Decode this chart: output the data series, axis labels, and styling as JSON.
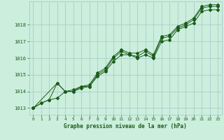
{
  "xlabel": "Graphe pression niveau de la mer (hPa)",
  "background_color": "#cceedd",
  "grid_color": "#aacccc",
  "line_color": "#1a5c1a",
  "text_color": "#1a5c1a",
  "xlim": [
    -0.5,
    23.5
  ],
  "ylim": [
    1012.6,
    1019.4
  ],
  "yticks": [
    1013,
    1014,
    1015,
    1016,
    1017,
    1018
  ],
  "xticks": [
    0,
    1,
    2,
    3,
    4,
    5,
    6,
    7,
    8,
    9,
    10,
    11,
    12,
    13,
    14,
    15,
    16,
    17,
    18,
    19,
    20,
    21,
    22,
    23
  ],
  "series1_x": [
    0,
    1,
    2,
    3,
    4,
    5,
    6,
    7,
    8,
    9,
    10,
    11,
    12,
    13,
    14,
    15,
    16,
    17,
    18,
    19,
    20,
    21,
    22,
    23
  ],
  "series1_y": [
    1013.0,
    1013.3,
    1013.5,
    1014.5,
    1014.0,
    1014.0,
    1014.3,
    1014.3,
    1015.0,
    1015.3,
    1016.0,
    1016.4,
    1016.2,
    1016.1,
    1016.4,
    1016.1,
    1017.2,
    1017.3,
    1017.8,
    1018.0,
    1018.3,
    1019.0,
    1019.1,
    1019.1
  ],
  "series2_x": [
    0,
    1,
    2,
    3,
    4,
    5,
    6,
    7,
    8,
    9,
    10,
    11,
    12,
    13,
    14,
    15,
    16,
    17,
    18,
    19,
    20,
    21,
    22,
    23
  ],
  "series2_y": [
    1013.0,
    1013.3,
    1013.5,
    1013.6,
    1014.0,
    1014.0,
    1014.2,
    1014.3,
    1014.9,
    1015.2,
    1015.8,
    1016.2,
    1016.2,
    1016.0,
    1016.2,
    1016.0,
    1017.0,
    1017.1,
    1017.7,
    1017.9,
    1018.1,
    1018.8,
    1018.9,
    1018.9
  ],
  "series3_x": [
    0,
    3,
    4,
    5,
    6,
    7,
    8,
    9,
    10,
    11,
    12,
    13,
    14,
    15,
    16,
    17,
    18,
    19,
    20,
    21,
    22,
    23
  ],
  "series3_y": [
    1013.0,
    1014.5,
    1014.0,
    1014.1,
    1014.3,
    1014.4,
    1015.1,
    1015.4,
    1016.1,
    1016.5,
    1016.3,
    1016.3,
    1016.5,
    1016.2,
    1017.3,
    1017.4,
    1017.9,
    1018.1,
    1018.4,
    1019.1,
    1019.2,
    1019.2
  ]
}
